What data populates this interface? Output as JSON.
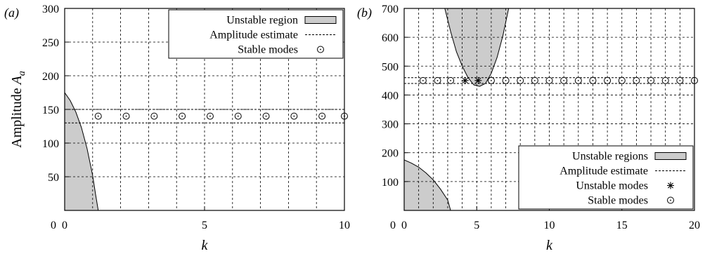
{
  "chart_data": [
    {
      "type": "line",
      "panel_label": "(a)",
      "xlabel": "k",
      "ylabel": "Amplitude A",
      "ylabel_sub": "a",
      "xlim": [
        0,
        10
      ],
      "ylim": [
        0,
        300
      ],
      "x_ticks": [
        0,
        5,
        10
      ],
      "y_ticks": [
        50,
        100,
        150,
        200,
        250,
        300
      ],
      "grid_x": [
        1,
        2,
        3,
        4,
        5,
        6,
        7,
        8,
        9
      ],
      "grid_y": [
        50,
        100,
        150,
        200,
        250
      ],
      "unstable_region": [
        [
          0,
          175
        ],
        [
          0.2,
          163
        ],
        [
          0.4,
          146
        ],
        [
          0.6,
          123
        ],
        [
          0.8,
          92
        ],
        [
          1.0,
          52
        ],
        [
          1.1,
          25
        ],
        [
          1.2,
          0
        ]
      ],
      "amplitude_estimate": [
        150,
        130
      ],
      "stable_modes": {
        "x": [
          1.2,
          2.2,
          3.2,
          4.2,
          5.2,
          6.2,
          7.2,
          8.2,
          9.2,
          10.0
        ],
        "y": 140
      },
      "unstable_modes": {
        "x": [],
        "y": null
      },
      "legend": {
        "position": "top-right",
        "entries": [
          {
            "label": "Unstable region",
            "kind": "fill"
          },
          {
            "label": "Amplitude estimate",
            "kind": "dashed"
          },
          {
            "label": "Stable modes",
            "kind": "circle"
          }
        ]
      },
      "grid": true
    },
    {
      "type": "line",
      "panel_label": "(b)",
      "xlabel": "k",
      "ylabel": "",
      "xlim": [
        0,
        20
      ],
      "ylim": [
        0,
        700
      ],
      "x_ticks": [
        0,
        5,
        10,
        15,
        20
      ],
      "x_ticks_minor": [],
      "y_ticks": [
        100,
        200,
        300,
        400,
        500,
        600,
        700
      ],
      "grid_x": [
        1,
        2,
        3,
        4,
        5,
        6,
        7,
        8,
        9,
        10,
        11,
        12,
        13,
        14,
        15,
        16,
        17,
        18,
        19
      ],
      "grid_y": [
        100,
        200,
        300,
        400,
        500,
        600
      ],
      "unstable_region_low": [
        [
          0,
          175
        ],
        [
          0.5,
          164
        ],
        [
          1.0,
          150
        ],
        [
          1.5,
          130
        ],
        [
          2.0,
          106
        ],
        [
          2.5,
          74
        ],
        [
          3.0,
          36
        ],
        [
          3.2,
          0
        ]
      ],
      "unstable_region_high": [
        [
          2.8,
          700
        ],
        [
          3.2,
          620
        ],
        [
          3.6,
          550
        ],
        [
          4.0,
          500
        ],
        [
          4.4,
          460
        ],
        [
          4.8,
          435
        ],
        [
          5.2,
          430
        ],
        [
          5.6,
          440
        ],
        [
          6.0,
          475
        ],
        [
          6.4,
          530
        ],
        [
          6.8,
          605
        ],
        [
          7.2,
          700
        ]
      ],
      "amplitude_estimate": [
        460,
        440
      ],
      "stable_modes": {
        "x": [
          1.3,
          2.3,
          3.2,
          6.0,
          7.0,
          8.0,
          9.0,
          10.0,
          11.0,
          12.0,
          13.0,
          14.0,
          15.0,
          16.0,
          17.0,
          18.0,
          19.0,
          20.0
        ],
        "y": 450
      },
      "unstable_modes": {
        "x": [
          4.2,
          5.1
        ],
        "y": 450
      },
      "legend": {
        "position": "bottom-right",
        "entries": [
          {
            "label": "Unstable regions",
            "kind": "fill"
          },
          {
            "label": "Amplitude estimate",
            "kind": "dashed"
          },
          {
            "label": "Unstable modes",
            "kind": "star"
          },
          {
            "label": "Stable modes",
            "kind": "circle"
          }
        ]
      },
      "grid": true
    }
  ]
}
